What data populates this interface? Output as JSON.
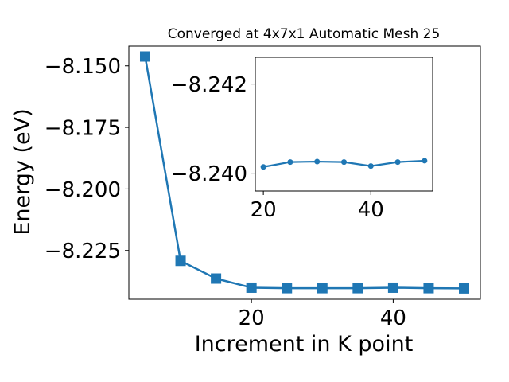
{
  "chart_data": [
    {
      "type": "line",
      "title": "Converged at 4x7x1 Automatic Mesh 25",
      "xlabel": "Increment in K point",
      "ylabel": "Energy (eV)",
      "x": [
        5,
        10,
        15,
        20,
        25,
        30,
        35,
        40,
        45,
        50
      ],
      "values": [
        -8.1462,
        -8.2292,
        -8.2364,
        -8.2401,
        -8.2403,
        -8.2403,
        -8.2403,
        -8.2401,
        -8.2403,
        -8.2404
      ],
      "xlim": [
        2.7,
        52.3
      ],
      "ylim": [
        -8.2448,
        -8.142
      ],
      "xticks": [
        20,
        40
      ],
      "xtick_labels": [
        "20",
        "40"
      ],
      "yticks": [
        -8.15,
        -8.175,
        -8.2,
        -8.225
      ],
      "ytick_labels": [
        "−8.150",
        "−8.175",
        "−8.200",
        "−8.225"
      ],
      "marker": "square",
      "color": "#1f77b4",
      "grid": false
    },
    {
      "type": "line",
      "inset": true,
      "x": [
        20,
        25,
        30,
        35,
        40,
        45,
        50
      ],
      "values": [
        -8.24014,
        -8.24025,
        -8.24026,
        -8.24025,
        -8.24016,
        -8.24025,
        -8.24028
      ],
      "xlim": [
        18.5,
        51.5
      ],
      "ylim": [
        -8.2396,
        -8.2426
      ],
      "xticks": [
        20,
        40
      ],
      "xtick_labels": [
        "20",
        "40"
      ],
      "yticks": [
        -8.242,
        -8.24
      ],
      "ytick_labels": [
        "−8.242",
        "−8.240"
      ],
      "marker": "circle",
      "color": "#1f77b4",
      "grid": false
    }
  ]
}
